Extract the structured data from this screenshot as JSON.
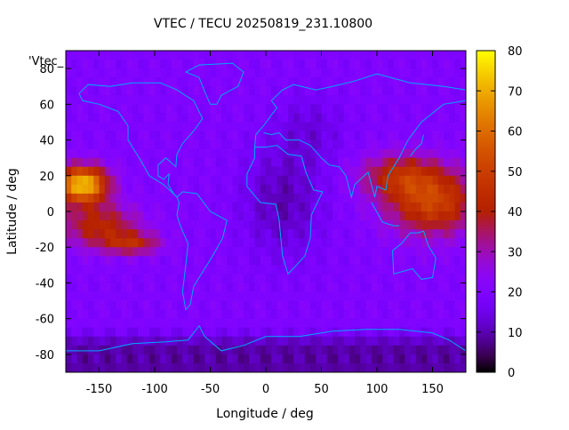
{
  "chart_data": {
    "type": "heatmap",
    "title": "VTEC / TECU 20250819_231.10800",
    "xlabel": "Longitude / deg",
    "ylabel": "Latitude / deg",
    "legend_label": "'Vtec_",
    "xlim": [
      -180,
      180
    ],
    "ylim": [
      -90,
      90
    ],
    "x_ticks": [
      -150,
      -100,
      -50,
      0,
      50,
      100,
      150
    ],
    "y_ticks": [
      -80,
      -60,
      -40,
      -20,
      0,
      20,
      40,
      60,
      80
    ],
    "colorbar": {
      "range": [
        0,
        80
      ],
      "ticks": [
        0,
        10,
        20,
        30,
        40,
        50,
        60,
        70,
        80
      ],
      "colormap": "gnuplot-hot (black-purple-red-orange-yellow)"
    },
    "grid_resolution_deg": 5,
    "field_summary": {
      "background_level": 20,
      "peak_value": 75,
      "peak_location": [
        -165,
        15
      ],
      "features": [
        {
          "region": "equatorial anomaly, central Pacific",
          "lon_range": [
            -180,
            -130
          ],
          "lat_range": [
            -25,
            25
          ],
          "value_range": [
            40,
            75
          ]
        },
        {
          "region": "equatorial band, western Pacific / Indonesia",
          "lon_range": [
            90,
            180
          ],
          "lat_range": [
            -15,
            35
          ],
          "value_range": [
            35,
            60
          ]
        },
        {
          "region": "low TEC, Africa / Atlantic",
          "lon_range": [
            -20,
            50
          ],
          "lat_range": [
            -30,
            30
          ],
          "value_range": [
            5,
            15
          ]
        },
        {
          "region": "low TEC, Antarctica / southern high latitudes",
          "lon_range": [
            -180,
            180
          ],
          "lat_range": [
            -90,
            -65
          ],
          "value_range": [
            3,
            12
          ]
        }
      ]
    },
    "overlay": "coastlines"
  }
}
